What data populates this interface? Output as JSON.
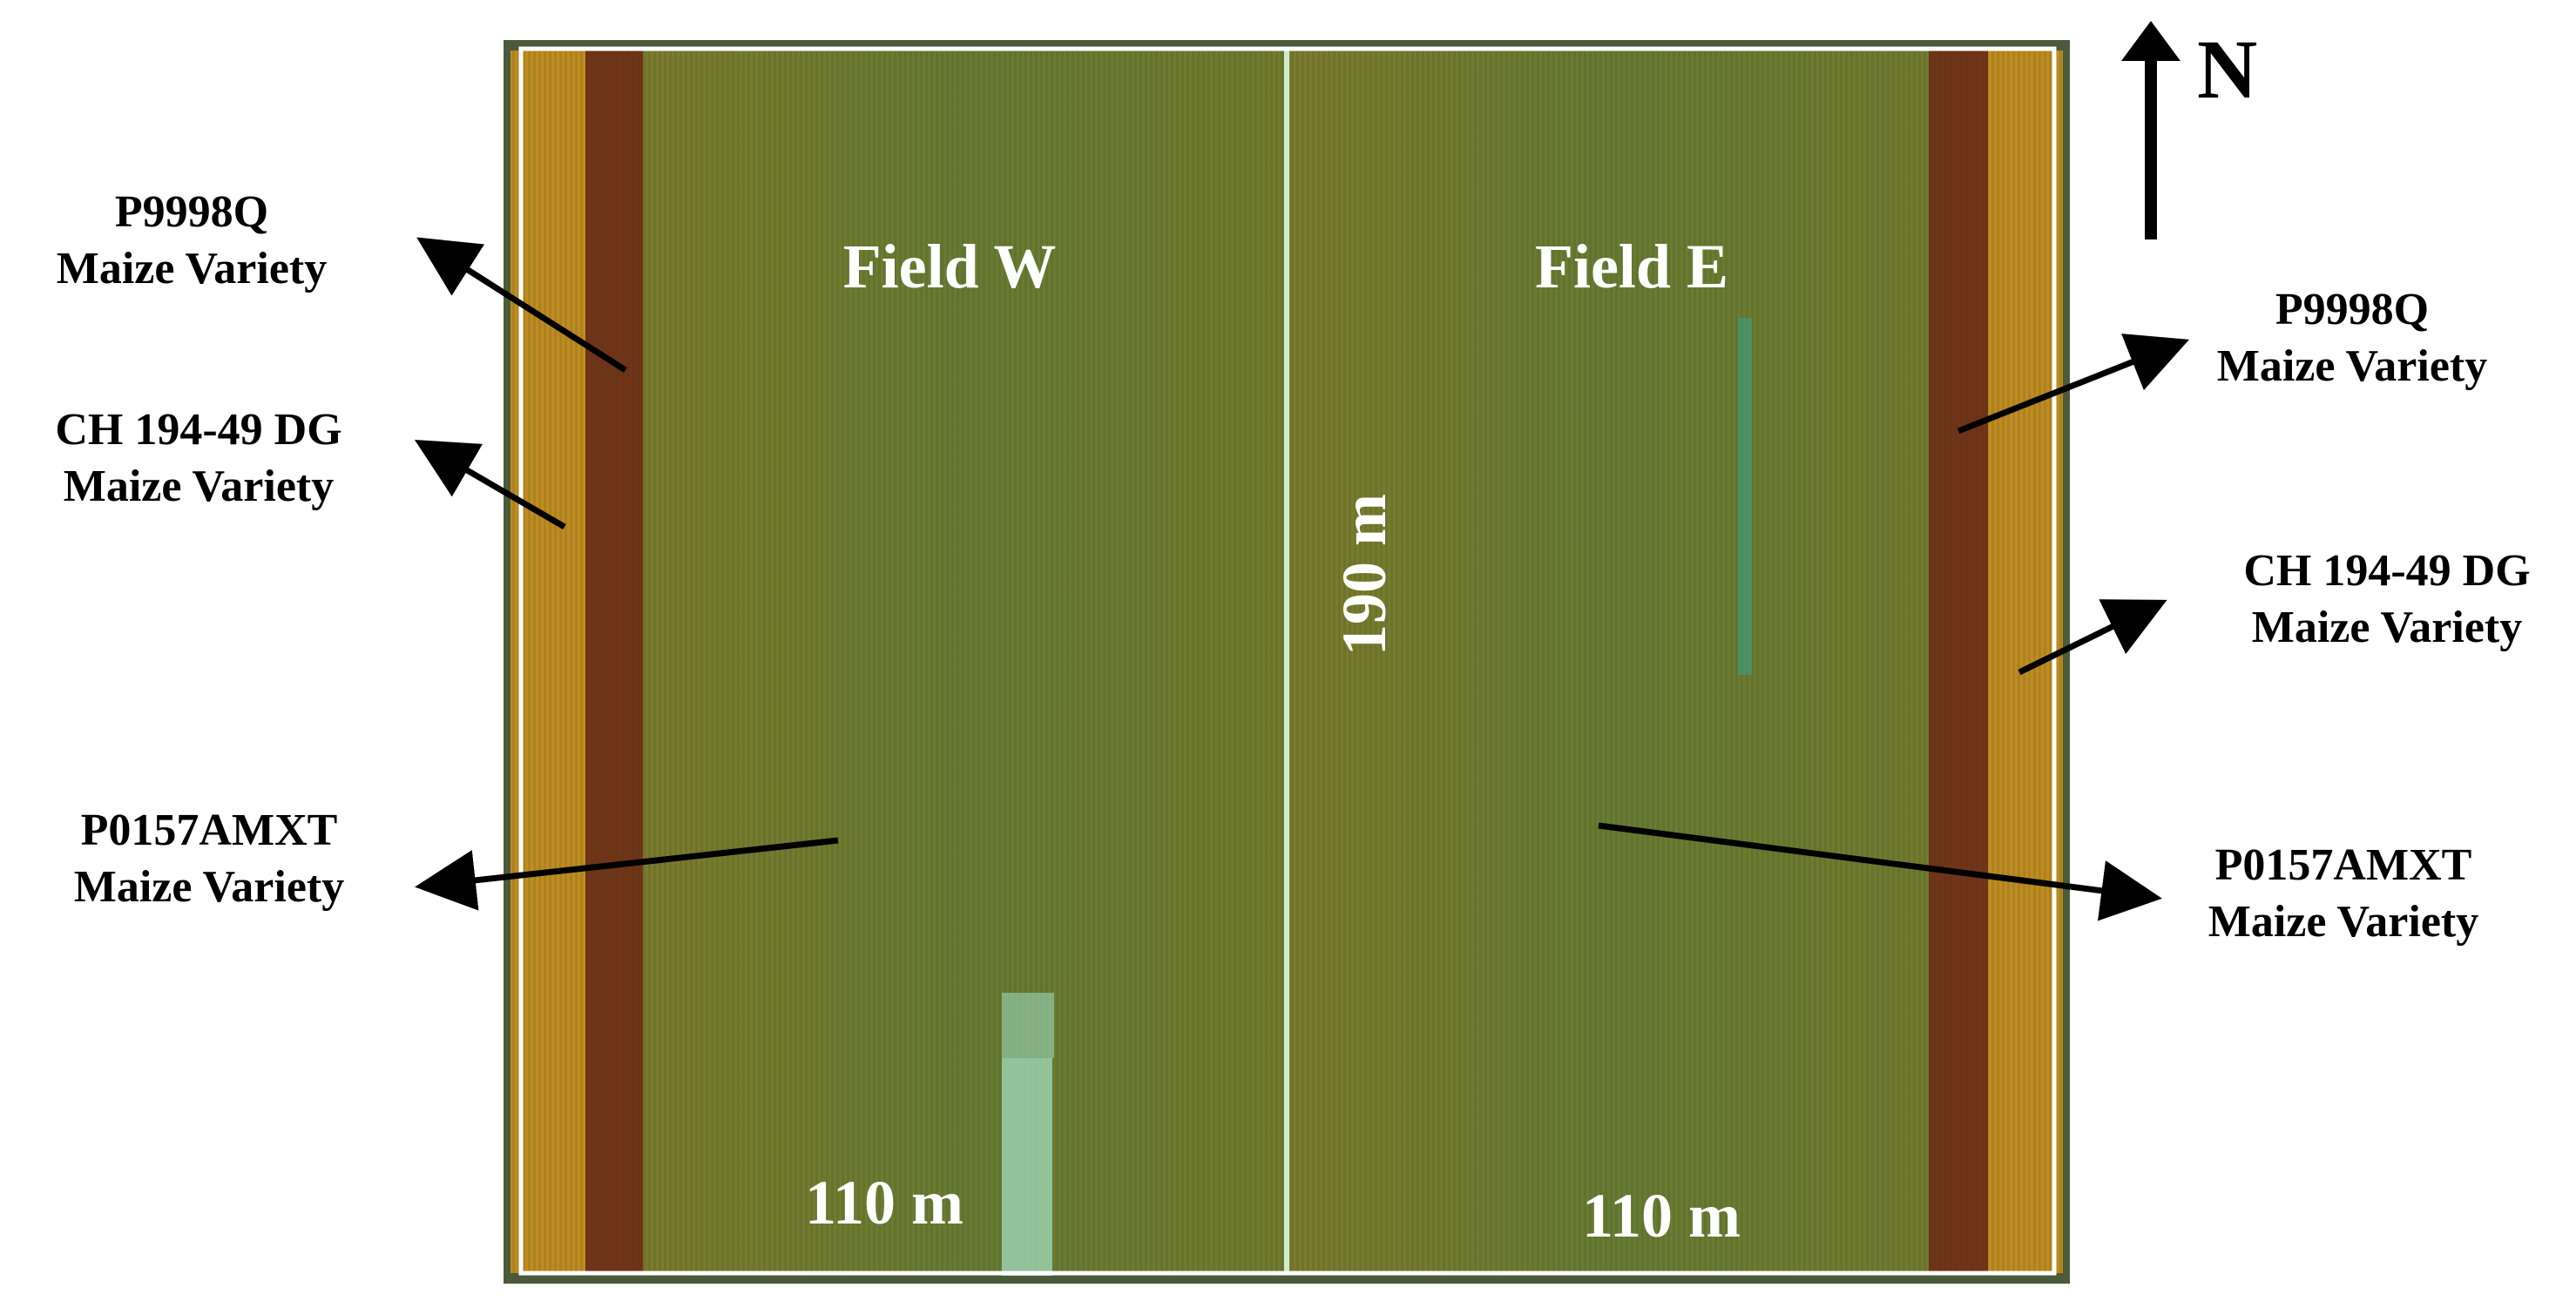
{
  "map": {
    "north_label": "N",
    "fields": {
      "west": {
        "label": "Field W",
        "width_label": "110 m"
      },
      "east": {
        "label": "Field E",
        "width_label": "110 m"
      },
      "length_label": "190 m"
    },
    "annotations": {
      "left": [
        {
          "line1": "P9998Q",
          "line2": "Maize Variety"
        },
        {
          "line1": "CH 194-49 DG",
          "line2": "Maize Variety"
        },
        {
          "line1": "P0157AMXT",
          "line2": "Maize Variety"
        }
      ],
      "right": [
        {
          "line1": "P9998Q",
          "line2": "Maize Variety"
        },
        {
          "line1": "CH 194-49 DG",
          "line2": "Maize Variety"
        },
        {
          "line1": "P0157AMXT",
          "line2": "Maize Variety"
        }
      ]
    },
    "colors": {
      "main_crop": "#6a7a2e",
      "dark_strip": "#6b1a10",
      "orange_strip": "#d4901c",
      "field_divider": "#cfeccf",
      "boundary": "#ffffff",
      "annotation_text": "#000000",
      "field_text": "#ffffff"
    }
  }
}
